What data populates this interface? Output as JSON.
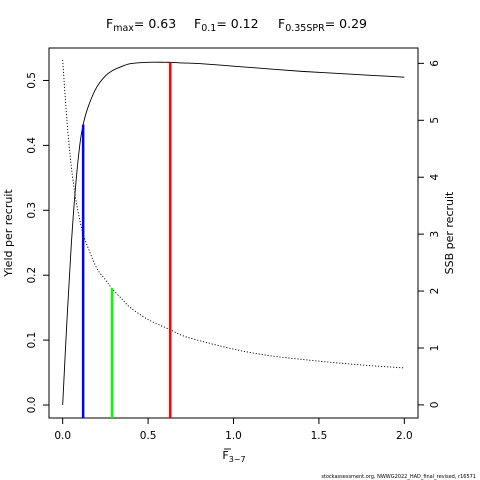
{
  "chart_data": {
    "type": "line",
    "title": {
      "fmax": {
        "sym": "F",
        "sub": "max",
        "value": "= 0.63"
      },
      "f01": {
        "sym": "F",
        "sub": "0.1",
        "value": "= 0.12"
      },
      "fspr": {
        "sym": "F",
        "sub": "0.35SPR",
        "value": "= 0.29"
      }
    },
    "xlabel": {
      "sym": "F",
      "sub": "3−7"
    },
    "ylabel": "Yield per recruit",
    "y2label": "SSB per recruit",
    "xlim": [
      -0.08,
      2.08
    ],
    "ylim": [
      -0.02,
      0.55
    ],
    "y2lim": [
      -0.23,
      6.27
    ],
    "x_ticks": [
      0,
      0.5,
      1.0,
      1.5,
      2.0
    ],
    "x_tick_labels": [
      "0.0",
      "0.5",
      "1.0",
      "1.5",
      "2.0"
    ],
    "y_ticks": [
      0.0,
      0.1,
      0.2,
      0.3,
      0.4,
      0.5
    ],
    "y_tick_labels": [
      "0.0",
      "0.1",
      "0.2",
      "0.3",
      "0.4",
      "0.5"
    ],
    "y2_ticks": [
      0,
      1,
      2,
      3,
      4,
      5,
      6
    ],
    "y2_tick_labels": [
      "0",
      "1",
      "2",
      "3",
      "4",
      "5",
      "6"
    ],
    "series": [
      {
        "name": "",
        "axis": "left",
        "style": "solid",
        "x": [
          0,
          0.025,
          0.05,
          0.075,
          0.1,
          0.12,
          0.15,
          0.2,
          0.25,
          0.29,
          0.35,
          0.4,
          0.5,
          0.6,
          0.63,
          0.7,
          0.8,
          1.0,
          1.2,
          1.4,
          1.6,
          1.8,
          2.0
        ],
        "values": [
          0.0,
          0.13,
          0.245,
          0.335,
          0.4,
          0.432,
          0.46,
          0.49,
          0.507,
          0.515,
          0.522,
          0.526,
          0.528,
          0.528,
          0.528,
          0.527,
          0.526,
          0.522,
          0.518,
          0.514,
          0.511,
          0.508,
          0.505
        ]
      },
      {
        "name": "",
        "axis": "right",
        "style": "dotted",
        "x": [
          0,
          0.025,
          0.05,
          0.075,
          0.1,
          0.12,
          0.15,
          0.2,
          0.25,
          0.29,
          0.35,
          0.4,
          0.5,
          0.6,
          0.63,
          0.7,
          0.8,
          1.0,
          1.2,
          1.4,
          1.6,
          1.8,
          2.0
        ],
        "values": [
          6.06,
          5.0,
          4.2,
          3.65,
          3.25,
          3.0,
          2.75,
          2.4,
          2.2,
          2.04,
          1.85,
          1.7,
          1.5,
          1.36,
          1.32,
          1.22,
          1.13,
          0.98,
          0.87,
          0.8,
          0.74,
          0.69,
          0.65
        ]
      }
    ],
    "reference_lines": [
      {
        "x": 0.12,
        "y": 0.432,
        "color": "#0000ff"
      },
      {
        "x": 0.29,
        "y": 0.18,
        "color": "#00ff00"
      },
      {
        "x": 0.63,
        "y": 0.528,
        "color": "#ff0000"
      }
    ],
    "grid": false,
    "legend": "none"
  },
  "footer": "stockassessment.org, NWWG2022_HAD_final_revised, r16571"
}
